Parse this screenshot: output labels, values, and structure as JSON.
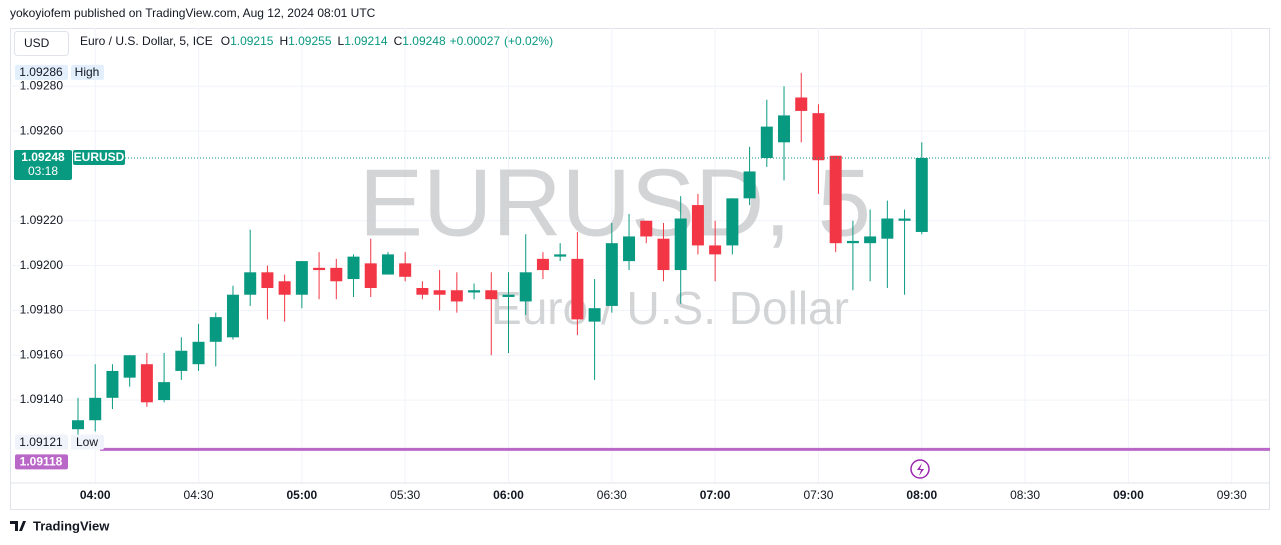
{
  "header": {
    "publisher": "yokoyiofem published on TradingView.com, Aug 12, 2024 08:01 UTC",
    "currency_button": "USD",
    "footer_brand": "TradingView"
  },
  "legend": {
    "symbol": "Euro / U.S. Dollar, 5, ICE",
    "items": [
      {
        "label": "O",
        "value": 1.09215
      },
      {
        "label": "H",
        "value": 1.09255
      },
      {
        "label": "L",
        "value": 1.09214
      },
      {
        "label": "C",
        "value": 1.09248
      }
    ],
    "change": "+0.00027",
    "change_pct": "(+0.02%)"
  },
  "chart_data": {
    "type": "candlestick",
    "watermark": "EURUSD, 5",
    "watermark_subtitle": "Euro / U.S. Dollar",
    "xticks": [
      "04:00",
      "04:30",
      "05:00",
      "05:30",
      "06:00",
      "06:30",
      "07:00",
      "07:30",
      "08:00",
      "08:30",
      "09:00",
      "09:30"
    ],
    "ylim": [
      1.09103,
      1.09306
    ],
    "yticks": [
      {
        "value": 1.0928,
        "label": "1.09280"
      },
      {
        "value": 1.0926,
        "label": "1.09260"
      },
      {
        "value": 1.0922,
        "label": "1.09220"
      },
      {
        "value": 1.092,
        "label": "1.09200"
      },
      {
        "value": 1.0918,
        "label": "1.09180"
      },
      {
        "value": 1.0916,
        "label": "1.09160"
      },
      {
        "value": 1.0914,
        "label": "1.09140"
      }
    ],
    "grid": true,
    "up_color": "#089981",
    "down_color": "#f23645",
    "open": [
      1.09127,
      1.09131,
      1.09141,
      1.0915,
      1.09156,
      1.0914,
      1.09153,
      1.09156,
      1.09166,
      1.09168,
      1.09187,
      1.09197,
      1.09193,
      1.09187,
      1.09199,
      1.09199,
      1.09194,
      1.09201,
      1.09196,
      1.09201,
      1.0919,
      1.09189,
      1.09189,
      1.09188,
      1.09189,
      1.09186,
      1.09184,
      1.09203,
      1.09204,
      1.09203,
      1.09175,
      1.09182,
      1.09202,
      1.0922,
      1.09212,
      1.09198,
      1.09227,
      1.09209,
      1.09209,
      1.0923,
      1.09248,
      1.09255,
      1.09275,
      1.09268,
      1.09249,
      1.0921,
      1.0921,
      1.09212,
      1.0922,
      1.09215
    ],
    "high": [
      1.09141,
      1.09156,
      1.09156,
      1.0916,
      1.09161,
      1.09161,
      1.09168,
      1.09174,
      1.09179,
      1.09191,
      1.09216,
      1.092,
      1.09196,
      1.09202,
      1.09206,
      1.09203,
      1.09205,
      1.09212,
      1.09206,
      1.09206,
      1.09193,
      1.09198,
      1.09197,
      1.09192,
      1.09197,
      1.09197,
      1.09214,
      1.09206,
      1.0921,
      1.09215,
      1.09194,
      1.09219,
      1.09223,
      1.0922,
      1.09219,
      1.09231,
      1.09232,
      1.0922,
      1.0923,
      1.09253,
      1.09274,
      1.0928,
      1.09286,
      1.09272,
      1.09249,
      1.0922,
      1.09225,
      1.09229,
      1.09225,
      1.09255
    ],
    "low": [
      1.09121,
      1.09126,
      1.09136,
      1.09146,
      1.09137,
      1.09139,
      1.09149,
      1.09153,
      1.09155,
      1.09167,
      1.09182,
      1.09176,
      1.09175,
      1.09181,
      1.09185,
      1.09185,
      1.09186,
      1.09186,
      1.09196,
      1.09193,
      1.09185,
      1.0918,
      1.09179,
      1.09185,
      1.0916,
      1.09161,
      1.09178,
      1.09194,
      1.09202,
      1.09169,
      1.09149,
      1.09179,
      1.09198,
      1.0921,
      1.09193,
      1.09183,
      1.09205,
      1.09193,
      1.09205,
      1.09227,
      1.09244,
      1.09238,
      1.09255,
      1.09232,
      1.09206,
      1.09189,
      1.09193,
      1.0919,
      1.09187,
      1.09214
    ],
    "close": [
      1.09131,
      1.09141,
      1.09153,
      1.0916,
      1.09139,
      1.09148,
      1.09162,
      1.09166,
      1.09177,
      1.09187,
      1.09197,
      1.0919,
      1.09187,
      1.09202,
      1.09198,
      1.09193,
      1.09204,
      1.0919,
      1.09205,
      1.09195,
      1.09187,
      1.09187,
      1.09184,
      1.09189,
      1.09185,
      1.09187,
      1.09197,
      1.09198,
      1.09205,
      1.09176,
      1.09181,
      1.0921,
      1.09213,
      1.09213,
      1.09198,
      1.09221,
      1.09209,
      1.09205,
      1.0923,
      1.09242,
      1.09262,
      1.09267,
      1.09269,
      1.09247,
      1.0921,
      1.09211,
      1.09213,
      1.09221,
      1.09221,
      1.09248
    ],
    "last_price": {
      "value": 1.09248,
      "symbol": "EURUSD",
      "countdown": "03:18",
      "color": "#089981"
    },
    "high_marker": {
      "value": 1.09286,
      "label": "High"
    },
    "low_marker": {
      "value": 1.09121,
      "label": "Low"
    },
    "level_line": {
      "value": 1.09118,
      "color": "#ba68c8"
    }
  }
}
